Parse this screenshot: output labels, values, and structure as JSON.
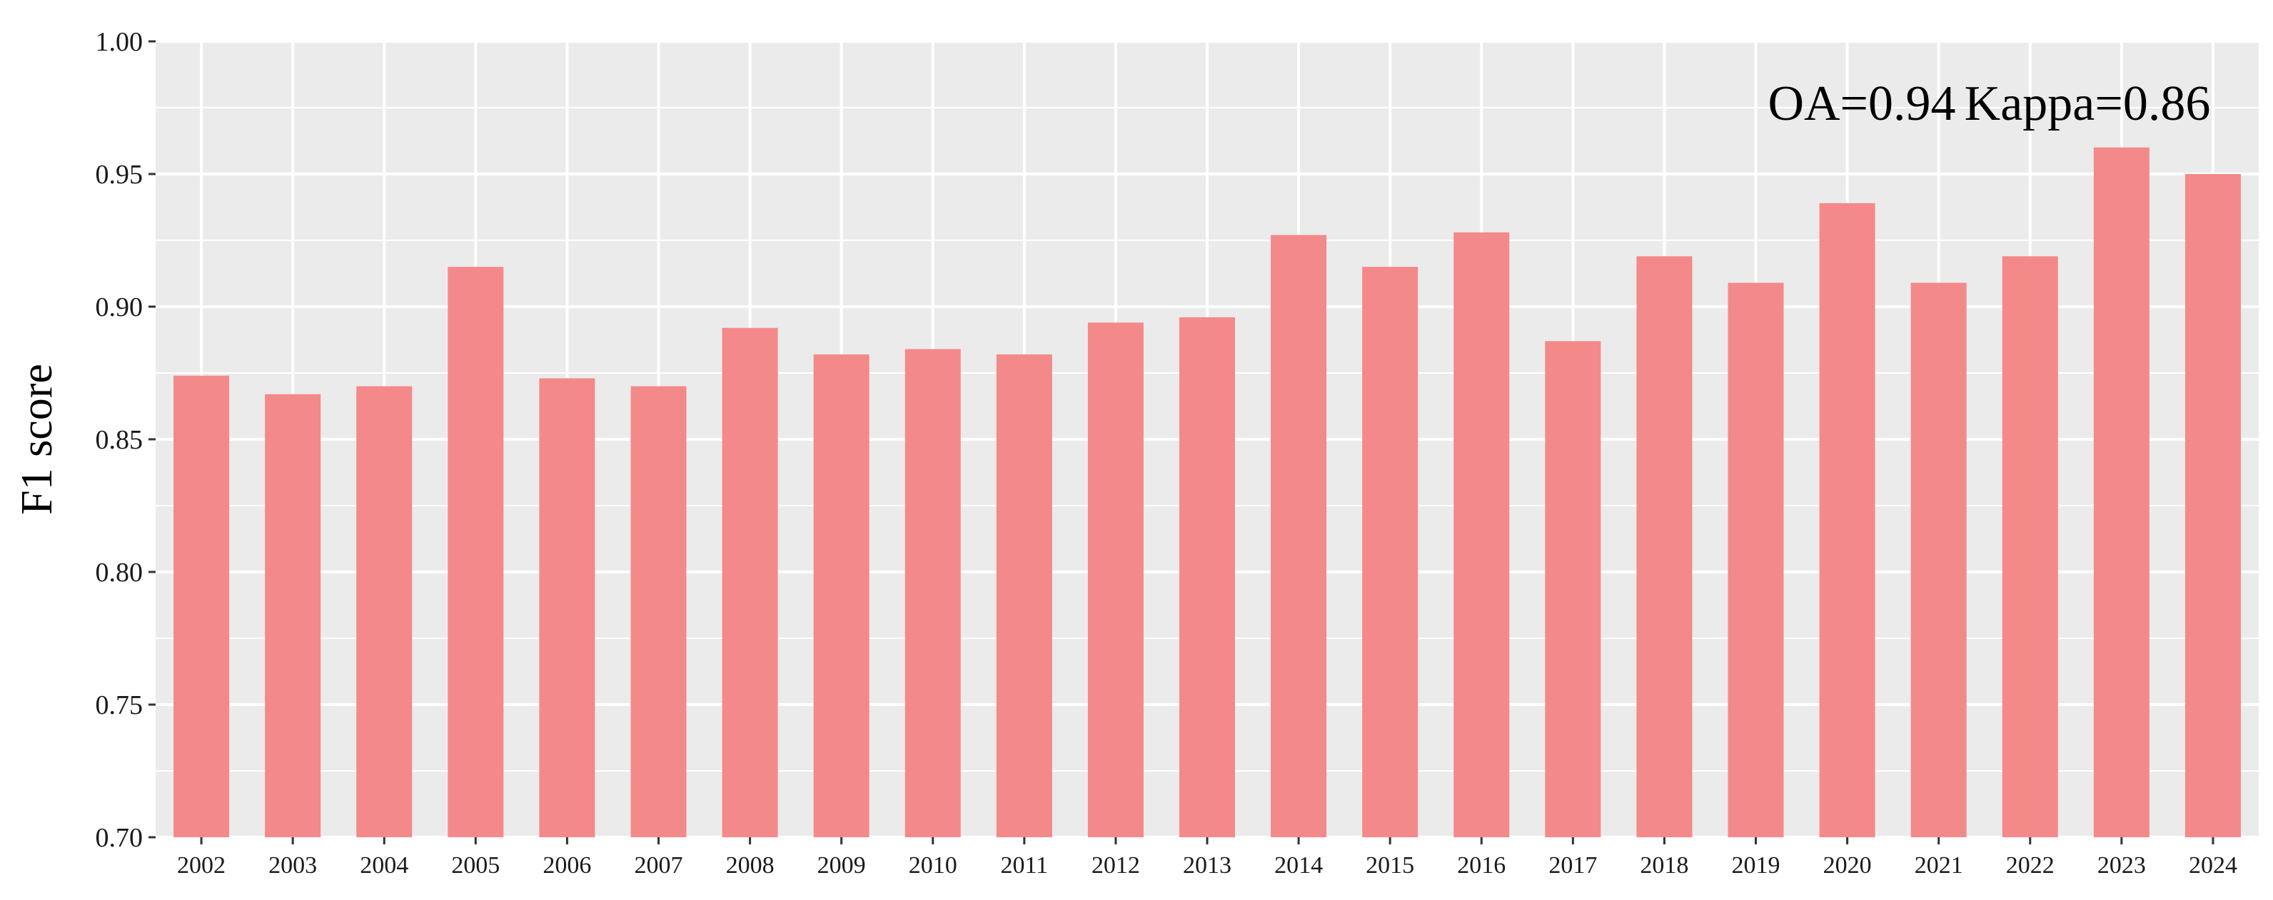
{
  "chart_data": {
    "type": "bar",
    "ylabel": "F1 score",
    "xlabel": "",
    "title": "",
    "ylim": [
      0.7,
      1.0
    ],
    "y_ticks": [
      "0.70",
      "0.75",
      "0.80",
      "0.85",
      "0.90",
      "0.95",
      "1.00"
    ],
    "grid": true,
    "annotations": [
      "OA=0.94",
      "Kappa=0.86"
    ],
    "categories": [
      "2002",
      "2003",
      "2004",
      "2005",
      "2006",
      "2007",
      "2008",
      "2009",
      "2010",
      "2011",
      "2012",
      "2013",
      "2014",
      "2015",
      "2016",
      "2017",
      "2018",
      "2019",
      "2020",
      "2021",
      "2022",
      "2023",
      "2024"
    ],
    "values": [
      0.874,
      0.867,
      0.87,
      0.915,
      0.873,
      0.87,
      0.892,
      0.882,
      0.884,
      0.882,
      0.894,
      0.896,
      0.927,
      0.915,
      0.928,
      0.887,
      0.919,
      0.909,
      0.939,
      0.909,
      0.919,
      0.96,
      0.95
    ],
    "bar_color": "#f4898a",
    "panel_color": "#ebebeb",
    "grid_color": "#ffffff"
  }
}
